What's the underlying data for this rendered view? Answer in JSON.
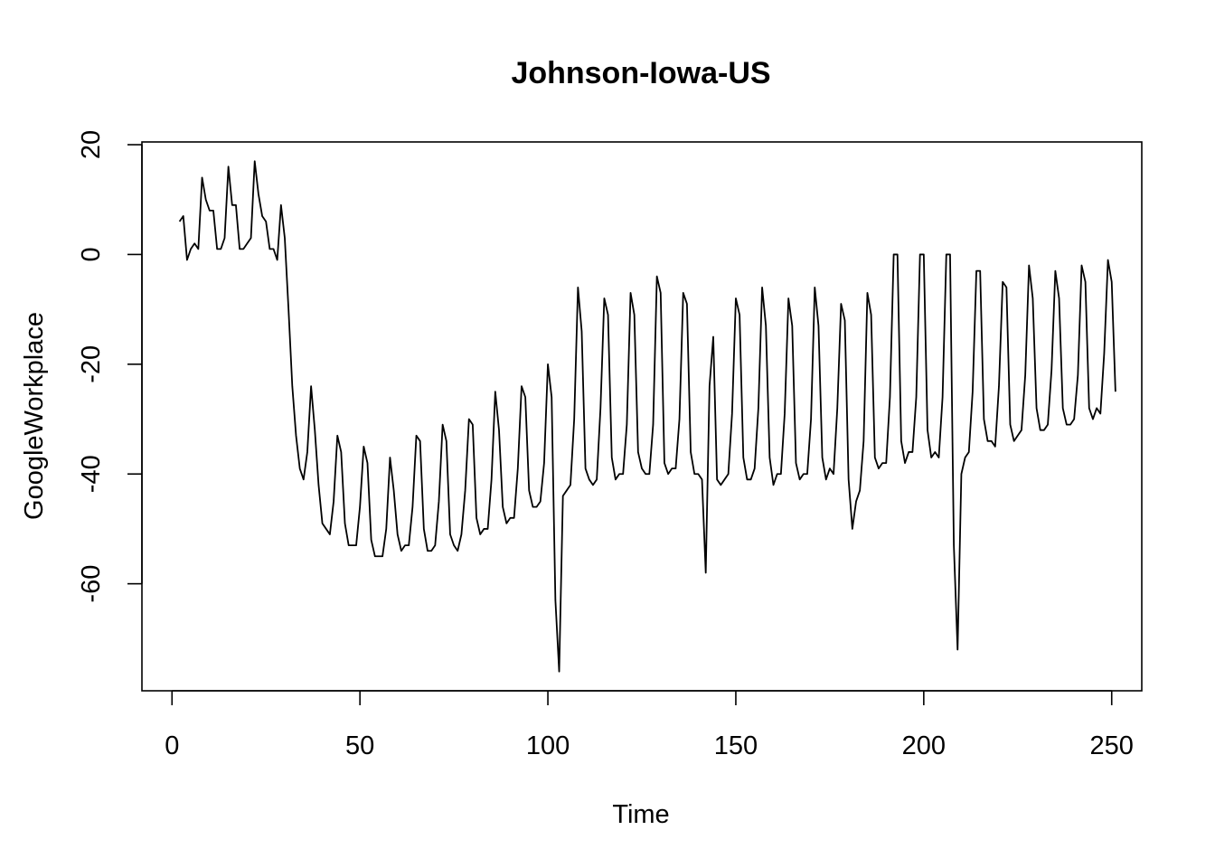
{
  "chart_data": {
    "type": "line",
    "title": "Johnson-Iowa-US",
    "xlabel": "Time",
    "ylabel": "GoogleWorkplace",
    "xlim": [
      -8,
      258
    ],
    "ylim": [
      -79.5,
      20.5
    ],
    "x_ticks": [
      0,
      50,
      100,
      150,
      200,
      250
    ],
    "y_ticks": [
      -60,
      -40,
      -20,
      0,
      20
    ],
    "x_tick_labels": [
      "0",
      "50",
      "100",
      "150",
      "200",
      "250"
    ],
    "y_tick_labels": [
      "-60",
      "-40",
      "-20",
      "0",
      "20"
    ],
    "grid": false,
    "legend": "none",
    "line_color": "#000000",
    "series": [
      {
        "x_start": 2,
        "values": [
          6,
          7,
          -1,
          1,
          2,
          1,
          14,
          10,
          8,
          8,
          1,
          1,
          3,
          16,
          9,
          9,
          1,
          1,
          2,
          3,
          17,
          11,
          7,
          6,
          1,
          1,
          -1,
          9,
          3,
          -10,
          -24,
          -33,
          -39,
          -41,
          -36,
          -24,
          -32,
          -42,
          -49,
          -50,
          -51,
          -45,
          -33,
          -36,
          -49,
          -53,
          -53,
          -53,
          -46,
          -35,
          -38,
          -52,
          -55,
          -55,
          -55,
          -50,
          -37,
          -43,
          -51,
          -54,
          -53,
          -53,
          -46,
          -33,
          -34,
          -50,
          -54,
          -54,
          -53,
          -45,
          -31,
          -34,
          -51,
          -53,
          -54,
          -51,
          -43,
          -30,
          -31,
          -48,
          -51,
          -50,
          -50,
          -41,
          -25,
          -32,
          -46,
          -49,
          -48,
          -48,
          -39,
          -24,
          -26,
          -43,
          -46,
          -46,
          -45,
          -38,
          -20,
          -26,
          -63,
          -76,
          -44,
          -43,
          -42,
          -30,
          -6,
          -14,
          -39,
          -41,
          -42,
          -41,
          -28,
          -8,
          -11,
          -37,
          -41,
          -40,
          -40,
          -31,
          -7,
          -11,
          -36,
          -39,
          -40,
          -40,
          -31,
          -4,
          -7,
          -38,
          -40,
          -39,
          -39,
          -30,
          -7,
          -9,
          -36,
          -40,
          -40,
          -41,
          -58,
          -24,
          -15,
          -41,
          -42,
          -41,
          -40,
          -29,
          -8,
          -11,
          -37,
          -41,
          -41,
          -39,
          -28,
          -6,
          -13,
          -37,
          -42,
          -40,
          -40,
          -29,
          -8,
          -13,
          -38,
          -41,
          -40,
          -40,
          -30,
          -6,
          -13,
          -37,
          -41,
          -39,
          -40,
          -28,
          -9,
          -12,
          -41,
          -50,
          -45,
          -43,
          -34,
          -7,
          -11,
          -37,
          -39,
          -38,
          -38,
          -26,
          0,
          0,
          -34,
          -38,
          -36,
          -36,
          -26,
          0,
          0,
          -32,
          -37,
          -36,
          -37,
          -26,
          0,
          0,
          -53,
          -72,
          -40,
          -37,
          -36,
          -25,
          -3,
          -3,
          -30,
          -34,
          -34,
          -35,
          -24,
          -5,
          -6,
          -31,
          -34,
          -33,
          -32,
          -22,
          -2,
          -8,
          -28,
          -32,
          -32,
          -31,
          -21,
          -3,
          -8,
          -28,
          -31,
          -31,
          -30,
          -22,
          -2,
          -5,
          -28,
          -30,
          -28,
          -29,
          -18,
          -1,
          -5,
          -25
        ]
      }
    ]
  }
}
